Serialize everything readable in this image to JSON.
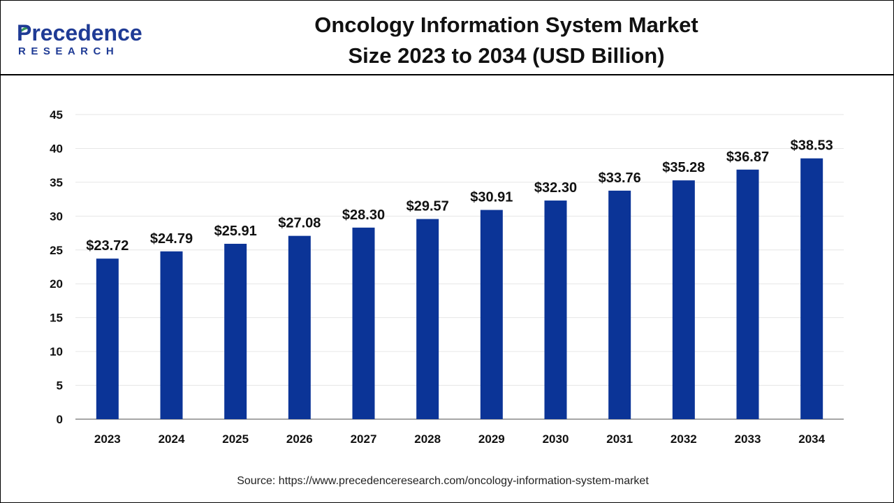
{
  "header": {
    "logo_name": "Precedence",
    "logo_sub": "RESEARCH",
    "title_line1": "Oncology Information System Market",
    "title_line2": "Size 2023 to 2034 (USD Billion)"
  },
  "colors": {
    "bar": "#0b3497",
    "logo_blue": "#1f3b95",
    "logo_green": "#3a9a5c",
    "grid": "#e6e6e6",
    "axis": "#888888"
  },
  "chart_data": {
    "type": "bar",
    "title": "Oncology Information System Market Size 2023 to 2034 (USD Billion)",
    "categories": [
      "2023",
      "2024",
      "2025",
      "2026",
      "2027",
      "2028",
      "2029",
      "2030",
      "2031",
      "2032",
      "2033",
      "2034"
    ],
    "values": [
      23.72,
      24.79,
      25.91,
      27.08,
      28.3,
      29.57,
      30.91,
      32.3,
      33.76,
      35.28,
      36.87,
      38.53
    ],
    "value_labels": [
      "$23.72",
      "$24.79",
      "$25.91",
      "$27.08",
      "$28.30",
      "$29.57",
      "$30.91",
      "$32.30",
      "$33.76",
      "$35.28",
      "$36.87",
      "$38.53"
    ],
    "ylim": [
      0,
      45
    ],
    "yticks": [
      0,
      5,
      10,
      15,
      20,
      25,
      30,
      35,
      40,
      45
    ],
    "xlabel": "",
    "ylabel": "",
    "grid": true,
    "legend": "none"
  },
  "footer": {
    "source": "Source: https://www.precedenceresearch.com/oncology-information-system-market"
  }
}
